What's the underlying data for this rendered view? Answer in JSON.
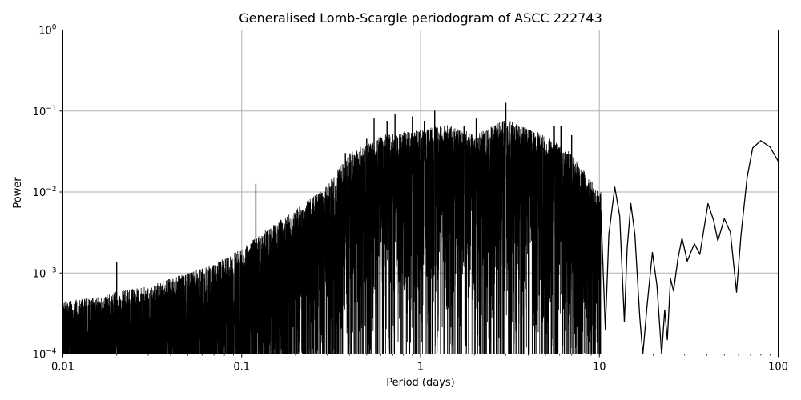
{
  "chart_data": {
    "type": "line",
    "title": "Generalised Lomb-Scargle periodogram of ASCC 222743",
    "xlabel": "Period (days)",
    "ylabel": "Power",
    "xscale": "log",
    "yscale": "log",
    "xlim": [
      0.01,
      100
    ],
    "ylim": [
      0.0001,
      1
    ],
    "grid": true,
    "line_color": "#000000",
    "x_ticks": [
      {
        "value": 0.01,
        "label": "0.01"
      },
      {
        "value": 0.1,
        "label": "0.1"
      },
      {
        "value": 1,
        "label": "1"
      },
      {
        "value": 10,
        "label": "10"
      },
      {
        "value": 100,
        "label": "100"
      }
    ],
    "y_ticks": [
      {
        "value": 0.0001,
        "base": "10",
        "exp": "−4"
      },
      {
        "value": 0.001,
        "base": "10",
        "exp": "−3"
      },
      {
        "value": 0.01,
        "base": "10",
        "exp": "−2"
      },
      {
        "value": 0.1,
        "base": "10",
        "exp": "−1"
      },
      {
        "value": 1,
        "base": "10",
        "exp": "0"
      }
    ],
    "envelope": {
      "description_points": [
        [
          0.01,
          0.00045
        ],
        [
          0.015,
          0.0005
        ],
        [
          0.02,
          0.0006
        ],
        [
          0.03,
          0.0007
        ],
        [
          0.05,
          0.001
        ],
        [
          0.07,
          0.0013
        ],
        [
          0.1,
          0.002
        ],
        [
          0.15,
          0.004
        ],
        [
          0.2,
          0.006
        ],
        [
          0.3,
          0.012
        ],
        [
          0.4,
          0.03
        ],
        [
          0.6,
          0.05
        ],
        [
          1,
          0.06
        ],
        [
          1.5,
          0.07
        ],
        [
          2,
          0.05
        ],
        [
          3,
          0.08
        ],
        [
          5,
          0.05
        ],
        [
          7,
          0.03
        ],
        [
          10,
          0.01
        ]
      ]
    },
    "peaks": [
      [
        0.02,
        0.00135
      ],
      [
        0.12,
        0.0125
      ],
      [
        0.38,
        0.03
      ],
      [
        0.5,
        0.045
      ],
      [
        0.55,
        0.08
      ],
      [
        0.65,
        0.075
      ],
      [
        0.72,
        0.09
      ],
      [
        0.9,
        0.085
      ],
      [
        1.05,
        0.075
      ],
      [
        1.2,
        0.1
      ],
      [
        1.55,
        0.055
      ],
      [
        1.75,
        0.065
      ],
      [
        2.05,
        0.08
      ],
      [
        3.0,
        0.125
      ],
      [
        5.6,
        0.065
      ],
      [
        6.1,
        0.065
      ],
      [
        7.0,
        0.05
      ],
      [
        8.8,
        0.0085
      ],
      [
        12.2,
        0.0115
      ],
      [
        15.0,
        0.0072
      ],
      [
        19.8,
        0.0018
      ],
      [
        25.0,
        0.00085
      ],
      [
        29.0,
        0.0027
      ],
      [
        34.0,
        0.0023
      ],
      [
        40.5,
        0.0072
      ],
      [
        50.0,
        0.0047
      ],
      [
        80.0,
        0.043
      ]
    ],
    "smooth_tail": [
      [
        10.2,
        0.006
      ],
      [
        10.8,
        0.0002
      ],
      [
        11.3,
        0.003
      ],
      [
        12.2,
        0.0115
      ],
      [
        13.0,
        0.005
      ],
      [
        13.8,
        0.00025
      ],
      [
        14.3,
        0.002
      ],
      [
        15.0,
        0.0072
      ],
      [
        15.8,
        0.003
      ],
      [
        16.8,
        0.0003
      ],
      [
        17.5,
        5e-05
      ],
      [
        18.5,
        0.0004
      ],
      [
        19.8,
        0.0018
      ],
      [
        21.0,
        0.0007
      ],
      [
        22.3,
        5e-05
      ],
      [
        23.2,
        0.00035
      ],
      [
        24.0,
        0.00015
      ],
      [
        25.0,
        0.00085
      ],
      [
        26.0,
        0.0006
      ],
      [
        27.5,
        0.0015
      ],
      [
        29.0,
        0.0027
      ],
      [
        31.0,
        0.0014
      ],
      [
        34.0,
        0.0023
      ],
      [
        36.5,
        0.0017
      ],
      [
        40.5,
        0.0072
      ],
      [
        43.5,
        0.0045
      ],
      [
        46.0,
        0.0025
      ],
      [
        50.0,
        0.0047
      ],
      [
        54.0,
        0.0032
      ],
      [
        58.5,
        0.00058
      ],
      [
        62.0,
        0.003
      ],
      [
        67.0,
        0.015
      ],
      [
        72.0,
        0.035
      ],
      [
        80.0,
        0.043
      ],
      [
        90.0,
        0.036
      ],
      [
        100.0,
        0.024
      ]
    ]
  }
}
